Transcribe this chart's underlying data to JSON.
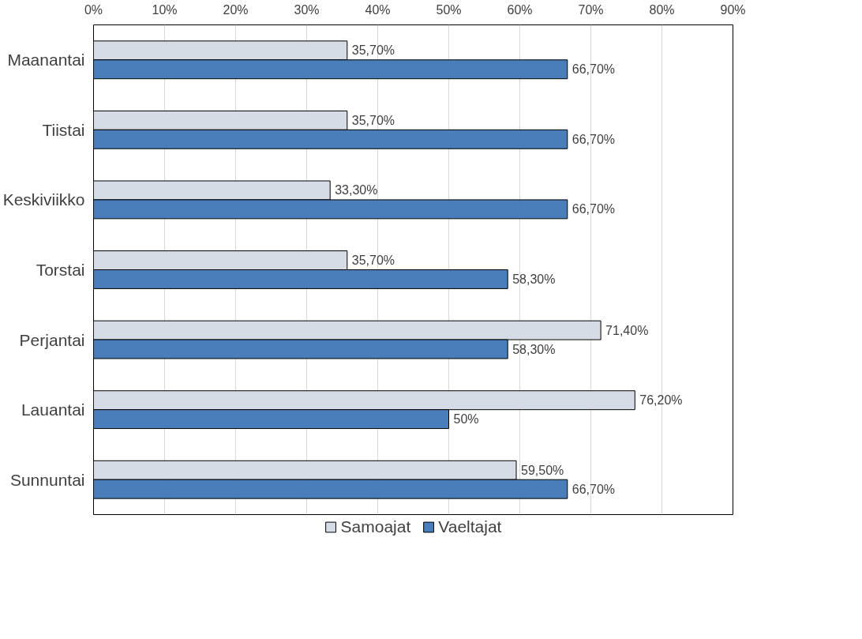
{
  "chart_data": {
    "type": "bar",
    "orientation": "horizontal",
    "categories": [
      "Maanantai",
      "Tiistai",
      "Keskiviikko",
      "Torstai",
      "Perjantai",
      "Lauantai",
      "Sunnuntai"
    ],
    "series": [
      {
        "name": "Samoajat",
        "color": "#d6dce5",
        "values": [
          35.7,
          35.7,
          33.3,
          35.7,
          71.4,
          76.2,
          59.5
        ],
        "value_labels": [
          "35,70%",
          "35,70%",
          "33,30%",
          "35,70%",
          "71,40%",
          "76,20%",
          "59,50%"
        ]
      },
      {
        "name": "Vaeltajat",
        "color": "#4a7ebb",
        "values": [
          66.7,
          66.7,
          66.7,
          58.3,
          58.3,
          50,
          66.7
        ],
        "value_labels": [
          "66,70%",
          "66,70%",
          "66,70%",
          "58,30%",
          "58,30%",
          "50%",
          "66,70%"
        ]
      }
    ],
    "xlim": [
      0,
      90
    ],
    "xticks": [
      {
        "value": 0,
        "label": "0%"
      },
      {
        "value": 10,
        "label": "10%"
      },
      {
        "value": 20,
        "label": "20%"
      },
      {
        "value": 30,
        "label": "30%"
      },
      {
        "value": 40,
        "label": "40%"
      },
      {
        "value": 50,
        "label": "50%"
      },
      {
        "value": 60,
        "label": "60%"
      },
      {
        "value": 70,
        "label": "70%"
      },
      {
        "value": 80,
        "label": "80%"
      },
      {
        "value": 90,
        "label": "90%"
      }
    ],
    "grid": "x",
    "legend": "bottom"
  }
}
